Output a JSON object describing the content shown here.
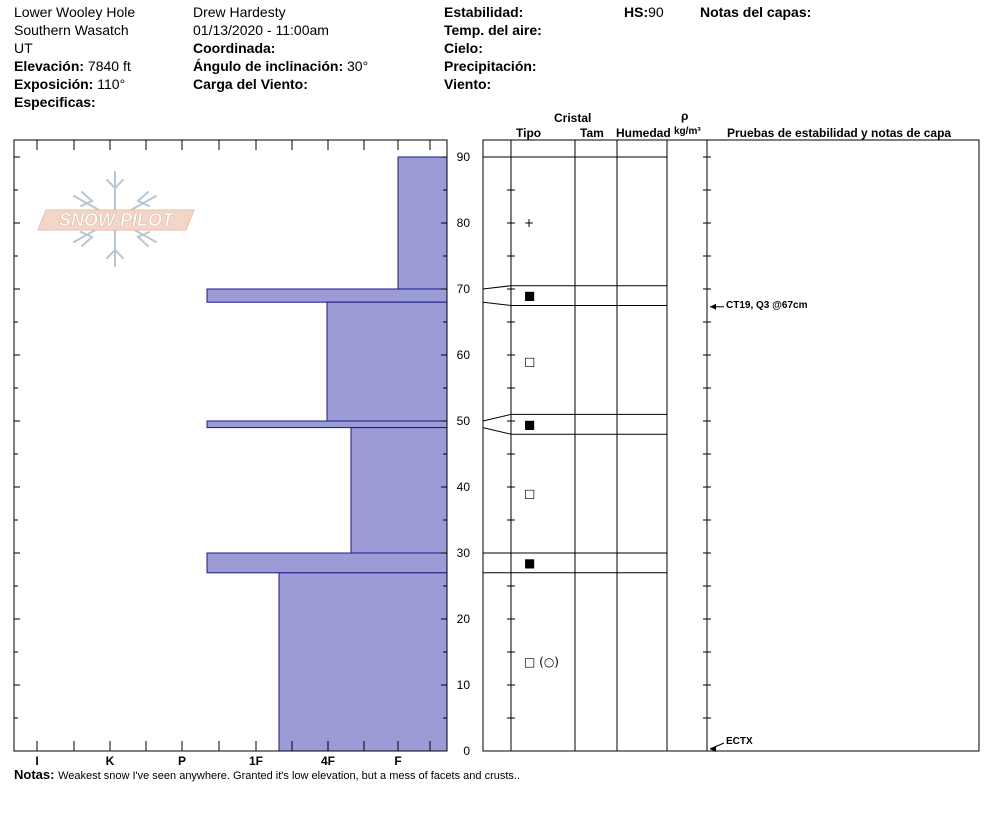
{
  "header": {
    "location": "Lower Wooley Hole",
    "range": "Southern Wasatch",
    "state": "UT",
    "elevation_label": "Elevación:",
    "elevation_value": "7840 ft",
    "aspect_label": "Exposición:",
    "aspect_value": "110°",
    "specifics_label": "Especificas:",
    "observer": "Drew Hardesty",
    "datetime": "01/13/2020 - 11:00am",
    "coords_label": "Coordinada:",
    "slope_label": "Ángulo de inclinación:",
    "slope_value": "30°",
    "wind_load_label": "Carga del Viento:",
    "stability_label": "Estabilidad:",
    "air_temp_label": "Temp. del aire:",
    "sky_label": "Cielo:",
    "precip_label": "Precipitación:",
    "wind_label": "Viento:",
    "hs_label": "HS:",
    "hs_value": "90",
    "layer_notes_label": "Notas del capas:"
  },
  "columns": {
    "crystal": "Cristal",
    "type": "Tipo",
    "size": "Tam",
    "moisture": "Humedad",
    "rho": "ρ",
    "density_unit": "kg/m³",
    "tests": "Pruebas de estabilidad y notas de capa"
  },
  "logo_text": "SNOW PILOT",
  "notes": {
    "label": "Notas:",
    "text": "Weakest snow I've seen anywhere.  Granted it's low elevation, but a mess of facets and crusts.."
  },
  "chart_data": {
    "type": "bar",
    "orientation": "horizontal",
    "y_axis": {
      "label": "",
      "range": [
        0,
        90
      ],
      "ticks": [
        0,
        10,
        20,
        30,
        40,
        50,
        60,
        70,
        80,
        90
      ]
    },
    "x_axis": {
      "label": "",
      "categories": [
        "I",
        "K",
        "P",
        "1F",
        "4F",
        "F"
      ],
      "range": [
        "I",
        "F"
      ]
    },
    "hardness_layers": [
      {
        "bottom": 70,
        "top": 90,
        "hardness": "F"
      },
      {
        "bottom": 68,
        "top": 70,
        "hardness": "1F+"
      },
      {
        "bottom": 50,
        "top": 68,
        "hardness": "4F-"
      },
      {
        "bottom": 49,
        "top": 50,
        "hardness": "1F+"
      },
      {
        "bottom": 30,
        "top": 49,
        "hardness": "4F+"
      },
      {
        "bottom": 27,
        "top": 30,
        "hardness": "1F+"
      },
      {
        "bottom": 0,
        "top": 27,
        "hardness": "1F-4F"
      }
    ],
    "crystal_layers": [
      {
        "depth": 80,
        "symbol": "+"
      },
      {
        "depth": 69,
        "symbol": "■"
      },
      {
        "depth": 59,
        "symbol": "□"
      },
      {
        "depth": 49.5,
        "symbol": "■"
      },
      {
        "depth": 39,
        "symbol": "□"
      },
      {
        "depth": 28.5,
        "symbol": "■"
      },
      {
        "depth": 13.5,
        "symbol": "□ (○)"
      }
    ],
    "layer_boundaries": [
      90,
      70.5,
      67.5,
      51,
      48,
      30,
      27
    ],
    "stability_tests": [
      {
        "depth": 67,
        "text": "CT19, Q3 @67cm"
      },
      {
        "depth": 0,
        "text": "ECTX"
      }
    ],
    "grid": false,
    "bar_color": "#9b9bd6"
  }
}
